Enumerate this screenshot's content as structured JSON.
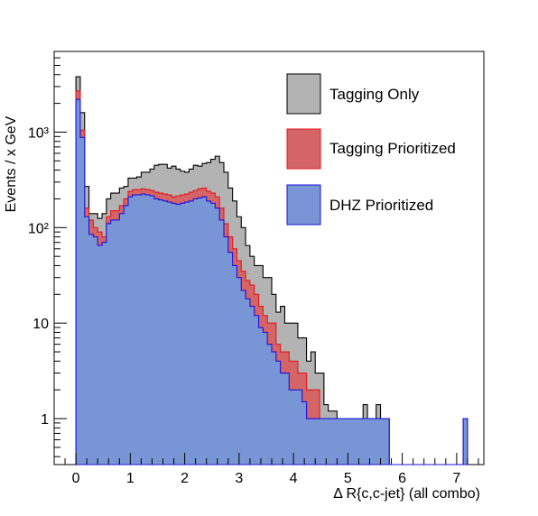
{
  "chart_data": {
    "type": "bar",
    "title": "",
    "xlabel": "Δ R{c,c-jet}  (all combo)",
    "ylabel": "Events / x GeV",
    "xlim": [
      -0.4,
      7.5
    ],
    "ylim": [
      0.33,
      7000
    ],
    "yscale": "log",
    "x_ticks": [
      0,
      1,
      2,
      3,
      4,
      5,
      6,
      7
    ],
    "y_ticks": [
      {
        "value": 1,
        "label": "1"
      },
      {
        "value": 10,
        "label": "10"
      },
      {
        "value": 100,
        "label": "10²"
      },
      {
        "value": 1000,
        "label": "10³"
      }
    ],
    "grid": false,
    "legend_position": "top-right",
    "bin_start": 0,
    "bin_width": 0.08,
    "series": [
      {
        "name": "Tagging Only",
        "fill": "#b3b3b3",
        "line": "#000000",
        "values": [
          3800,
          1600,
          270,
          140,
          140,
          125,
          140,
          200,
          230,
          230,
          260,
          270,
          330,
          330,
          340,
          380,
          380,
          410,
          450,
          460,
          460,
          420,
          440,
          410,
          390,
          380,
          410,
          450,
          440,
          470,
          480,
          520,
          560,
          480,
          380,
          260,
          190,
          130,
          100,
          65,
          50,
          40,
          40,
          30,
          30,
          20,
          13,
          15,
          10,
          10,
          10,
          7,
          7,
          4,
          5,
          3,
          3,
          1.4,
          1.2,
          1.2,
          1,
          1,
          1,
          1,
          1,
          1,
          1.4,
          1,
          1,
          1.4,
          1,
          1,
          0,
          0,
          0,
          0,
          0,
          0,
          0,
          0,
          0,
          0,
          0,
          0,
          0,
          0,
          0,
          0,
          0,
          1
        ]
      },
      {
        "name": "Tagging Prioritized",
        "fill": "#d46466",
        "line": "#e3181b",
        "values": [
          2700,
          1050,
          160,
          120,
          100,
          90,
          80,
          130,
          150,
          150,
          170,
          200,
          240,
          250,
          250,
          255,
          250,
          245,
          235,
          230,
          225,
          220,
          210,
          215,
          220,
          225,
          235,
          245,
          255,
          260,
          240,
          230,
          210,
          160,
          110,
          80,
          60,
          45,
          35,
          28,
          25,
          20,
          15,
          12,
          10,
          10,
          6,
          5,
          5,
          4,
          4,
          3,
          3,
          2,
          2,
          2,
          1,
          1,
          1,
          1,
          1,
          1,
          1,
          1,
          1,
          1,
          1,
          1,
          1,
          1,
          1,
          1,
          0,
          0,
          0,
          0,
          0,
          0,
          0,
          0,
          0,
          0,
          0,
          0,
          0,
          0,
          0,
          0,
          0,
          1
        ]
      },
      {
        "name": "DHZ Prioritized",
        "fill": "#7896d5",
        "line": "#1b12e0",
        "values": [
          2200,
          880,
          130,
          85,
          80,
          65,
          70,
          110,
          120,
          120,
          140,
          170,
          210,
          220,
          220,
          225,
          220,
          215,
          200,
          195,
          190,
          185,
          180,
          175,
          180,
          185,
          190,
          200,
          205,
          210,
          190,
          180,
          160,
          120,
          80,
          55,
          40,
          30,
          22,
          18,
          15,
          12,
          9,
          8,
          6,
          5,
          4,
          3,
          3,
          2,
          2,
          2,
          1.5,
          1,
          1,
          1,
          1,
          1,
          1,
          1,
          1,
          1,
          1,
          1,
          1,
          1,
          1,
          1,
          1,
          1,
          1,
          1,
          0,
          0,
          0,
          0,
          0,
          0,
          0,
          0,
          0,
          0,
          0,
          0,
          0,
          0,
          0,
          0,
          0,
          1
        ]
      }
    ]
  }
}
